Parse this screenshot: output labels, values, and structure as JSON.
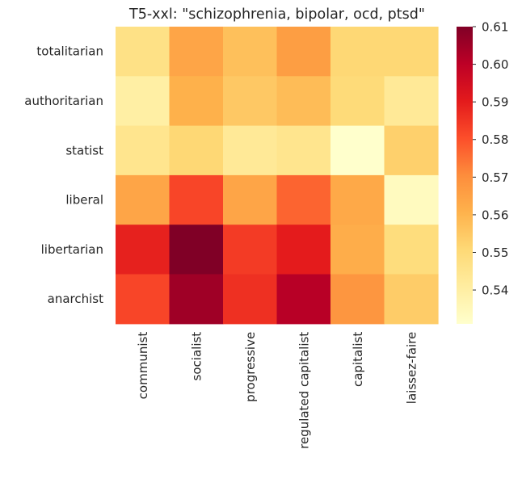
{
  "chart_data": {
    "type": "heatmap",
    "title": "T5-xxl: \"schizophrenia, bipolar, ocd, ptsd\"",
    "xlabel": "",
    "ylabel": "",
    "x_categories": [
      "communist",
      "socialist",
      "progressive",
      "regulated capitalist",
      "capitalist",
      "laissez-faire"
    ],
    "y_categories": [
      "totalitarian",
      "authoritarian",
      "statist",
      "liberal",
      "libertarian",
      "anarchist"
    ],
    "values": [
      [
        0.547,
        0.564,
        0.557,
        0.566,
        0.551,
        0.551
      ],
      [
        0.54,
        0.561,
        0.555,
        0.558,
        0.55,
        0.543
      ],
      [
        0.545,
        0.551,
        0.543,
        0.545,
        0.531,
        0.553
      ],
      [
        0.564,
        0.582,
        0.564,
        0.577,
        0.563,
        0.534
      ],
      [
        0.589,
        0.61,
        0.584,
        0.59,
        0.562,
        0.549
      ],
      [
        0.582,
        0.605,
        0.586,
        0.601,
        0.568,
        0.554
      ]
    ],
    "colormap": "YlOrRd",
    "vmin": 0.531,
    "vmax": 0.61,
    "colorbar_ticks": [
      0.54,
      0.55,
      0.56,
      0.57,
      0.58,
      0.59,
      0.6,
      0.61
    ],
    "colorbar_tick_labels": [
      "0.54",
      "0.55",
      "0.56",
      "0.57",
      "0.58",
      "0.59",
      "0.60",
      "0.61"
    ],
    "grid": false
  }
}
